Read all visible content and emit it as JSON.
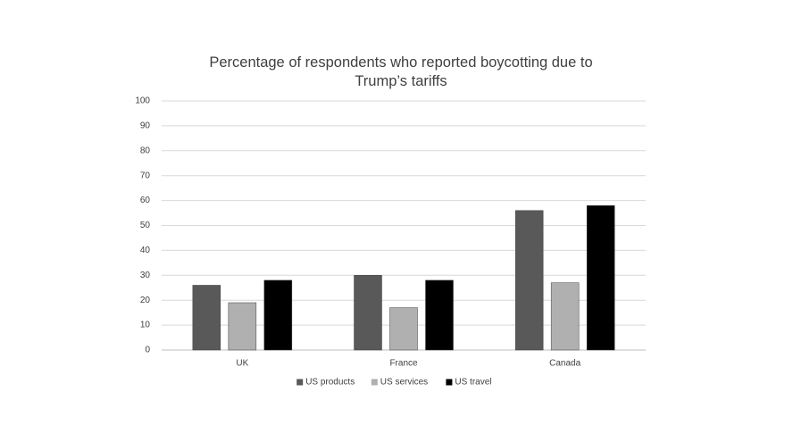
{
  "chart_data": {
    "type": "bar",
    "title": "Percentage of respondents who reported boycotting due to Trump’s tariffs",
    "categories": [
      "UK",
      "France",
      "Canada"
    ],
    "series": [
      {
        "name": "US products",
        "color": "#595959",
        "values": [
          26,
          30,
          56
        ]
      },
      {
        "name": "US services",
        "color": "#b0b0b0",
        "values": [
          19,
          17,
          27
        ]
      },
      {
        "name": "US travel",
        "color": "#000000",
        "values": [
          28,
          28,
          58
        ]
      }
    ],
    "ylim": [
      0,
      100
    ],
    "yticks": [
      0,
      10,
      20,
      30,
      40,
      50,
      60,
      70,
      80,
      90,
      100
    ],
    "grid": true,
    "legend": "bottom"
  }
}
